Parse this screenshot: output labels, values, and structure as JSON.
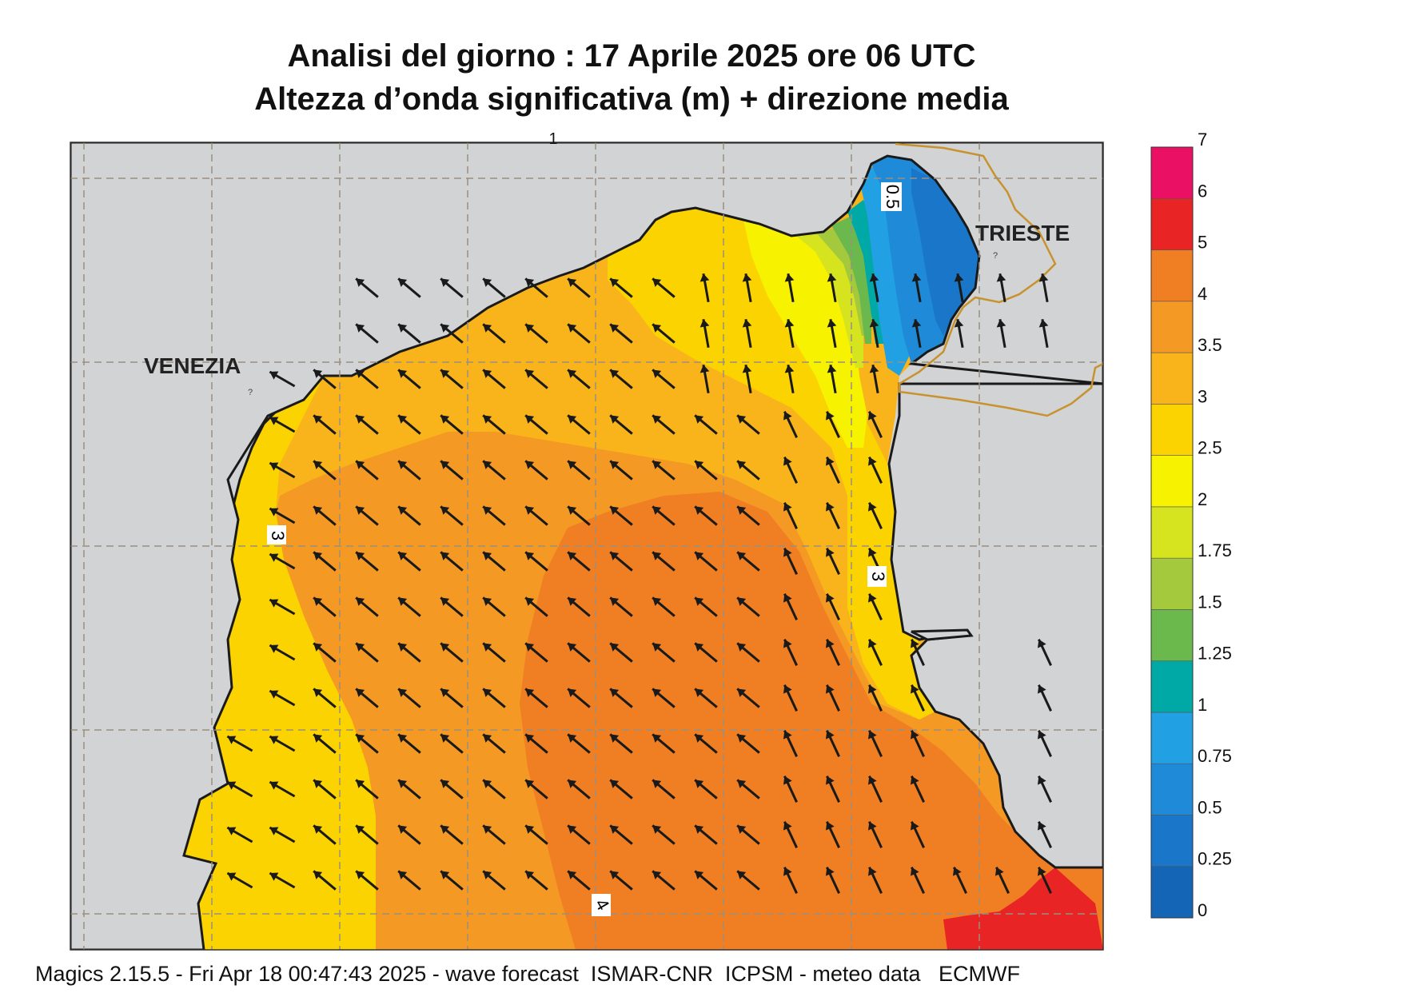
{
  "title": {
    "line1": "Analisi del giorno :  17   Aprile  2025   ore 06 UTC",
    "line2": "Altezza d’onda significativa (m) + direzione media"
  },
  "footer": "Magics 2.15.5 - Fri Apr 18 00:47:43 2025 - wave forecast  ISMAR-CNR  ICPSM - meteo data   ECMWF",
  "places": {
    "venezia": "VENEZIA",
    "trieste": "TRIESTE"
  },
  "contour_labels": [
    "0.5",
    "3",
    "3",
    "4"
  ],
  "top_tick": "1",
  "legend": {
    "levels": [
      {
        "label": "0",
        "color": "#1565b6"
      },
      {
        "label": "0.25",
        "color": "#1a76c8"
      },
      {
        "label": "0.5",
        "color": "#1f8ad8"
      },
      {
        "label": "0.75",
        "color": "#21a0e3"
      },
      {
        "label": "1",
        "color": "#00a9a5"
      },
      {
        "label": "1.25",
        "color": "#6bb94d"
      },
      {
        "label": "1.5",
        "color": "#a5c93c"
      },
      {
        "label": "1.75",
        "color": "#d6e31f"
      },
      {
        "label": "2",
        "color": "#f7f200"
      },
      {
        "label": "2.5",
        "color": "#fbd300"
      },
      {
        "label": "3",
        "color": "#f8b41a"
      },
      {
        "label": "3.5",
        "color": "#f49a24"
      },
      {
        "label": "4",
        "color": "#f07f23"
      },
      {
        "label": "5",
        "color": "#e92424"
      },
      {
        "label": "6",
        "color": "#ea1064"
      },
      {
        "label": "7",
        "color": ""
      }
    ]
  },
  "colors": {
    "land": "#d2d3d4",
    "coast": "#1a1a1a",
    "border": "#c8922e",
    "grid": "#9a8f80",
    "arrow": "#1a1a1a"
  }
}
